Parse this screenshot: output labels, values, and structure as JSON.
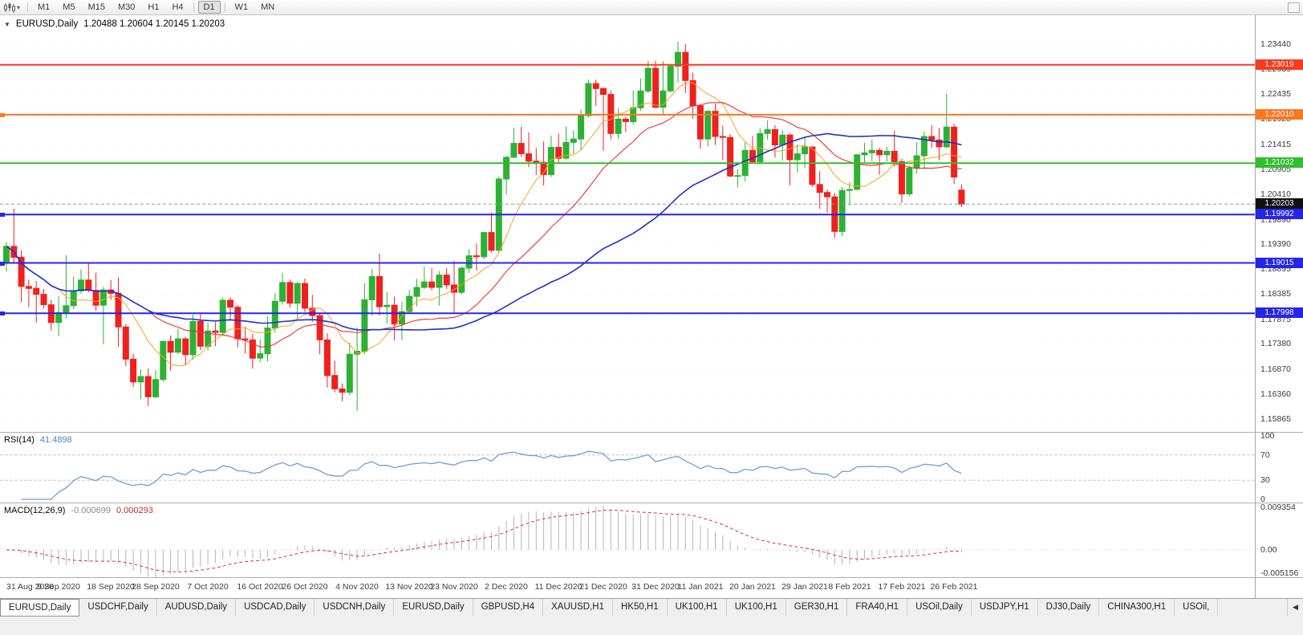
{
  "toolbar": {
    "caret_glyph": "▾",
    "timeframes": [
      "M1",
      "M5",
      "M15",
      "M30",
      "H1",
      "H4",
      "D1",
      "W1",
      "MN"
    ],
    "active_timeframe": "D1"
  },
  "chart": {
    "title_symbol": "EURUSD,Daily",
    "title_ohlc": "1.20488 1.20604 1.20145 1.20203",
    "collapse_icon": "▼",
    "current_price": "1.20203",
    "current_price_badge_color": "#111111",
    "candle_up_color": "#2db135",
    "candle_down_color": "#ef2020",
    "price_scale": [
      "1.23440",
      "1.22939",
      "1.22435",
      "1.21925",
      "1.21415",
      "1.20905",
      "1.20410",
      "1.19890",
      "1.19390",
      "1.18895",
      "1.18385",
      "1.17875",
      "1.17380",
      "1.16870",
      "1.16360",
      "1.15865"
    ],
    "hlines": [
      {
        "price": 1.23019,
        "label": "1.23019",
        "color": "#f83b1e",
        "anchor": false
      },
      {
        "price": 1.2201,
        "label": "1.22010",
        "color": "#f9771d",
        "anchor": true
      },
      {
        "price": 1.21032,
        "label": "1.21032",
        "color": "#2fc02f",
        "anchor": false
      },
      {
        "price": 1.19992,
        "label": "1.19992",
        "color": "#2525e8",
        "anchor": true
      },
      {
        "price": 1.19015,
        "label": "1.19015",
        "color": "#2525e8",
        "anchor": true
      },
      {
        "price": 1.17998,
        "label": "1.17998",
        "color": "#2525e8",
        "anchor": true
      }
    ]
  },
  "chart_data": {
    "type": "candlestick",
    "symbol": "EURUSD",
    "period": "Daily",
    "y_range": [
      1.156,
      1.2402
    ],
    "x_axis_dates": [
      [
        0,
        "31 Aug 2020"
      ],
      [
        7,
        "9 Sep 2020"
      ],
      [
        14,
        "18 Sep 2020"
      ],
      [
        20,
        "28 Sep 2020"
      ],
      [
        27,
        "7 Oct 2020"
      ],
      [
        34,
        "16 Oct 2020"
      ],
      [
        40,
        "26 Oct 2020"
      ],
      [
        47,
        "4 Nov 2020"
      ],
      [
        54,
        "13 Nov 2020"
      ],
      [
        60,
        "23 Nov 2020"
      ],
      [
        67,
        "2 Dec 2020"
      ],
      [
        74,
        "11 Dec 2020"
      ],
      [
        80,
        "21 Dec 2020"
      ],
      [
        87,
        "31 Dec 2020"
      ],
      [
        93,
        "11 Jan 2021"
      ],
      [
        100,
        "20 Jan 2021"
      ],
      [
        107,
        "29 Jan 2021"
      ],
      [
        113,
        "8 Feb 2021"
      ],
      [
        120,
        "17 Feb 2021"
      ],
      [
        127,
        "26 Feb 2021"
      ]
    ],
    "moving_averages": [
      {
        "period": 8,
        "color": "#ffa01a",
        "width": 1
      },
      {
        "period": 20,
        "color": "#f03030",
        "width": 1.1
      },
      {
        "period": 45,
        "color": "#1e32c8",
        "width": 1.6
      }
    ],
    "candles": [
      [
        1.1904,
        1.1944,
        1.1884,
        1.1935
      ],
      [
        1.1935,
        1.2011,
        1.1902,
        1.1913
      ],
      [
        1.1913,
        1.1927,
        1.1822,
        1.1854
      ],
      [
        1.1854,
        1.1868,
        1.1812,
        1.185
      ],
      [
        1.185,
        1.1865,
        1.1781,
        1.1838
      ],
      [
        1.1838,
        1.1849,
        1.181,
        1.1817
      ],
      [
        1.1817,
        1.1827,
        1.1765,
        1.1781
      ],
      [
        1.1781,
        1.1834,
        1.1753,
        1.1801
      ],
      [
        1.1801,
        1.1917,
        1.1789,
        1.1815
      ],
      [
        1.1815,
        1.1874,
        1.1808,
        1.1845
      ],
      [
        1.1845,
        1.1888,
        1.1839,
        1.1867
      ],
      [
        1.1867,
        1.19,
        1.1842,
        1.1846
      ],
      [
        1.1846,
        1.1882,
        1.1805,
        1.1816
      ],
      [
        1.1816,
        1.1853,
        1.1737,
        1.1847
      ],
      [
        1.1847,
        1.1867,
        1.1827,
        1.184
      ],
      [
        1.184,
        1.1872,
        1.1732,
        1.1772
      ],
      [
        1.1772,
        1.1778,
        1.1693,
        1.1707
      ],
      [
        1.1707,
        1.1718,
        1.1651,
        1.1661
      ],
      [
        1.1661,
        1.1686,
        1.1626,
        1.1672
      ],
      [
        1.1672,
        1.1688,
        1.1612,
        1.1631
      ],
      [
        1.1631,
        1.1685,
        1.1628,
        1.1666
      ],
      [
        1.1666,
        1.1745,
        1.1661,
        1.1743
      ],
      [
        1.1743,
        1.1755,
        1.1684,
        1.1721
      ],
      [
        1.1721,
        1.1769,
        1.1717,
        1.1748
      ],
      [
        1.1748,
        1.1752,
        1.1695,
        1.1716
      ],
      [
        1.1716,
        1.1797,
        1.1706,
        1.1783
      ],
      [
        1.1783,
        1.1798,
        1.1725,
        1.1733
      ],
      [
        1.1733,
        1.1781,
        1.1725,
        1.1764
      ],
      [
        1.1764,
        1.1782,
        1.1733,
        1.1761
      ],
      [
        1.1761,
        1.1831,
        1.1755,
        1.1826
      ],
      [
        1.1826,
        1.1832,
        1.1785,
        1.1812
      ],
      [
        1.1812,
        1.1816,
        1.1731,
        1.1748
      ],
      [
        1.1748,
        1.1772,
        1.1718,
        1.1746
      ],
      [
        1.1746,
        1.1758,
        1.1688,
        1.1709
      ],
      [
        1.1709,
        1.1747,
        1.1701,
        1.1718
      ],
      [
        1.1718,
        1.1794,
        1.1703,
        1.177
      ],
      [
        1.177,
        1.184,
        1.1761,
        1.1824
      ],
      [
        1.1824,
        1.1881,
        1.1817,
        1.1862
      ],
      [
        1.1862,
        1.1868,
        1.1811,
        1.182
      ],
      [
        1.182,
        1.1863,
        1.1786,
        1.186
      ],
      [
        1.186,
        1.187,
        1.1802,
        1.181
      ],
      [
        1.181,
        1.1837,
        1.1782,
        1.1795
      ],
      [
        1.1795,
        1.18,
        1.1717,
        1.1746
      ],
      [
        1.1746,
        1.1759,
        1.165,
        1.1674
      ],
      [
        1.1674,
        1.1704,
        1.164,
        1.1647
      ],
      [
        1.1647,
        1.1658,
        1.1622,
        1.164
      ],
      [
        1.164,
        1.174,
        1.1634,
        1.1717
      ],
      [
        1.1717,
        1.1771,
        1.1603,
        1.1723
      ],
      [
        1.1723,
        1.1861,
        1.1717,
        1.1827
      ],
      [
        1.1827,
        1.189,
        1.1795,
        1.1874
      ],
      [
        1.1874,
        1.192,
        1.1795,
        1.1813
      ],
      [
        1.1813,
        1.1843,
        1.1779,
        1.1816
      ],
      [
        1.1816,
        1.1833,
        1.1745,
        1.1778
      ],
      [
        1.1778,
        1.1823,
        1.1746,
        1.1803
      ],
      [
        1.1803,
        1.1847,
        1.1799,
        1.1834
      ],
      [
        1.1834,
        1.1869,
        1.1814,
        1.1852
      ],
      [
        1.1852,
        1.1894,
        1.1849,
        1.1863
      ],
      [
        1.1863,
        1.1891,
        1.1846,
        1.1852
      ],
      [
        1.1852,
        1.1885,
        1.1815,
        1.1877
      ],
      [
        1.1877,
        1.1891,
        1.1849,
        1.1857
      ],
      [
        1.1857,
        1.1906,
        1.18,
        1.1842
      ],
      [
        1.1842,
        1.1895,
        1.1838,
        1.1891
      ],
      [
        1.1891,
        1.1929,
        1.1881,
        1.1916
      ],
      [
        1.1916,
        1.1941,
        1.1886,
        1.1914
      ],
      [
        1.1914,
        1.1964,
        1.1909,
        1.1963
      ],
      [
        1.1963,
        1.2003,
        1.1923,
        1.1927
      ],
      [
        1.1927,
        1.2076,
        1.1922,
        1.2071
      ],
      [
        1.2071,
        1.2118,
        1.204,
        1.2115
      ],
      [
        1.2115,
        1.2175,
        1.2113,
        1.2143
      ],
      [
        1.2143,
        1.2177,
        1.2116,
        1.2122
      ],
      [
        1.2122,
        1.2165,
        1.2095,
        1.2107
      ],
      [
        1.2107,
        1.2134,
        1.2079,
        1.2105
      ],
      [
        1.2105,
        1.2147,
        1.2058,
        1.208
      ],
      [
        1.208,
        1.2159,
        1.2075,
        1.2135
      ],
      [
        1.2135,
        1.2163,
        1.2103,
        1.2113
      ],
      [
        1.2113,
        1.2177,
        1.211,
        1.2145
      ],
      [
        1.2145,
        1.2169,
        1.2122,
        1.2152
      ],
      [
        1.2152,
        1.2212,
        1.213,
        1.2199
      ],
      [
        1.2199,
        1.2272,
        1.2195,
        1.2264
      ],
      [
        1.2264,
        1.2272,
        1.2219,
        1.2254
      ],
      [
        1.2254,
        1.2256,
        1.2128,
        1.2242
      ],
      [
        1.2242,
        1.225,
        1.2151,
        1.2163
      ],
      [
        1.2163,
        1.2214,
        1.2152,
        1.2192
      ],
      [
        1.2192,
        1.2196,
        1.2166,
        1.2187
      ],
      [
        1.2187,
        1.225,
        1.2181,
        1.2215
      ],
      [
        1.2215,
        1.2274,
        1.2209,
        1.2249
      ],
      [
        1.2249,
        1.231,
        1.2245,
        1.2295
      ],
      [
        1.2295,
        1.231,
        1.2214,
        1.2216
      ],
      [
        1.2216,
        1.2309,
        1.22,
        1.2249
      ],
      [
        1.2249,
        1.2304,
        1.2246,
        1.2299
      ],
      [
        1.2299,
        1.2349,
        1.2266,
        1.2327
      ],
      [
        1.2327,
        1.2344,
        1.2245,
        1.227
      ],
      [
        1.227,
        1.2286,
        1.2193,
        1.2219
      ],
      [
        1.2219,
        1.2223,
        1.2132,
        1.2152
      ],
      [
        1.2152,
        1.221,
        1.2137,
        1.2208
      ],
      [
        1.2208,
        1.2223,
        1.214,
        1.2157
      ],
      [
        1.2157,
        1.2179,
        1.211,
        1.2155
      ],
      [
        1.2155,
        1.2162,
        1.2075,
        1.2077
      ],
      [
        1.2077,
        1.2091,
        1.2054,
        1.2078
      ],
      [
        1.2078,
        1.2145,
        1.2066,
        1.2129
      ],
      [
        1.2129,
        1.2158,
        1.2102,
        1.2106
      ],
      [
        1.2106,
        1.2173,
        1.2103,
        1.2163
      ],
      [
        1.2163,
        1.2189,
        1.2151,
        1.2171
      ],
      [
        1.2171,
        1.218,
        1.2115,
        1.214
      ],
      [
        1.214,
        1.217,
        1.2108,
        1.216
      ],
      [
        1.216,
        1.2163,
        1.2058,
        1.211
      ],
      [
        1.211,
        1.2141,
        1.2084,
        1.2122
      ],
      [
        1.2122,
        1.2157,
        1.2093,
        1.2136
      ],
      [
        1.2136,
        1.2136,
        1.2055,
        1.206
      ],
      [
        1.206,
        1.2087,
        1.2011,
        1.2044
      ],
      [
        1.2044,
        1.205,
        1.2003,
        1.2035
      ],
      [
        1.2035,
        1.2043,
        1.1952,
        1.1965
      ],
      [
        1.1965,
        1.2055,
        1.1956,
        1.2048
      ],
      [
        1.2048,
        1.2064,
        1.2018,
        1.205
      ],
      [
        1.205,
        1.2122,
        1.2048,
        1.212
      ],
      [
        1.212,
        1.2144,
        1.2105,
        1.2124
      ],
      [
        1.2124,
        1.2151,
        1.2107,
        1.2129
      ],
      [
        1.2129,
        1.2134,
        1.208,
        1.212
      ],
      [
        1.212,
        1.2136,
        1.2107,
        1.2127
      ],
      [
        1.2127,
        1.2169,
        1.2096,
        1.2106
      ],
      [
        1.2106,
        1.2112,
        1.2023,
        1.2041
      ],
      [
        1.2041,
        1.2098,
        1.2036,
        1.2093
      ],
      [
        1.2093,
        1.2145,
        1.2082,
        1.2118
      ],
      [
        1.2118,
        1.2167,
        1.2091,
        1.2157
      ],
      [
        1.2157,
        1.218,
        1.2134,
        1.215
      ],
      [
        1.215,
        1.2174,
        1.2109,
        1.2136
      ],
      [
        1.2136,
        1.2243,
        1.2134,
        1.2176
      ],
      [
        1.2176,
        1.2183,
        1.2061,
        1.2075
      ],
      [
        1.20488,
        1.20604,
        1.20145,
        1.20203
      ]
    ]
  },
  "rsi": {
    "label": "RSI(14)",
    "period": 14,
    "value": "41.4898",
    "line_color": "#6aa0d8",
    "levels": [
      70,
      30
    ],
    "scale": [
      {
        "v": 100,
        "t": "100"
      },
      {
        "v": 70,
        "t": "70"
      },
      {
        "v": 30,
        "t": "30"
      },
      {
        "v": 0,
        "t": "0"
      }
    ]
  },
  "macd": {
    "label": "MACD(12,26,9)",
    "fast": 12,
    "slow": 26,
    "signal": 9,
    "value_main": "-0.000699",
    "value_signal": "0.000293",
    "histogram_color": "#b4b4b4",
    "signal_color": "#dd3333",
    "scale_max": 0.009354,
    "scale_min": -0.005156,
    "scale": [
      {
        "v": 0.009354,
        "t": "0.009354"
      },
      {
        "v": 0,
        "t": "0.00"
      },
      {
        "v": -0.005156,
        "t": "-0.005156"
      }
    ]
  },
  "tabs": {
    "active_index": 0,
    "scroll_left_icon": "◀",
    "items": [
      "EURUSD,Daily",
      "USDCHF,Daily",
      "AUDUSD,Daily",
      "USDCAD,Daily",
      "USDCNH,Daily",
      "EURUSD,Daily",
      "GBPUSD,H4",
      "XAUUSD,H1",
      "HK50,H1",
      "UK100,H1",
      "UK100,H1",
      "GER30,H1",
      "FRA40,H1",
      "USOil,Daily",
      "USDJPY,H1",
      "DJ30,Daily",
      "CHINA300,H1",
      "USOil,"
    ]
  }
}
